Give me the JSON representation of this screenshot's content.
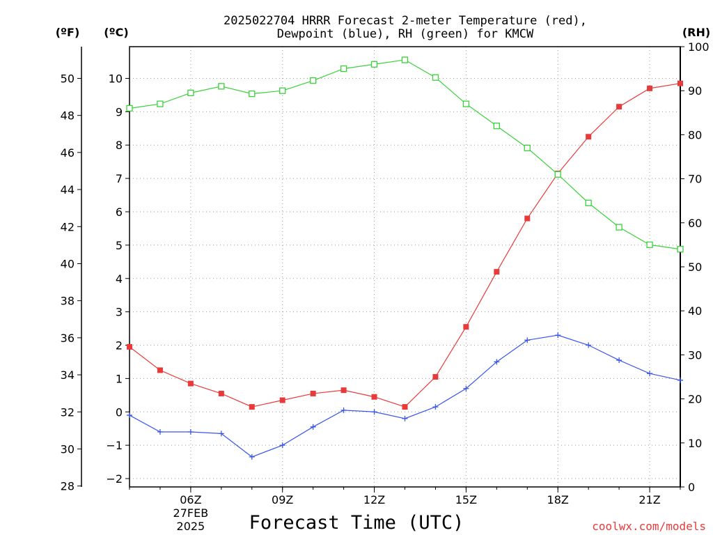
{
  "chart_data": {
    "type": "line",
    "title": "2025022704 HRRR Forecast 2-meter Temperature (red),",
    "subtitle": "Dewpoint (blue), RH (green) for KMCW",
    "xlabel": "Forecast Time (UTC)",
    "units": {
      "fahrenheit": "(ºF)",
      "celsius": "(ºC)",
      "rh": "(RH)"
    },
    "x_hours": [
      4,
      5,
      6,
      7,
      8,
      9,
      10,
      11,
      12,
      13,
      14,
      15,
      16,
      17,
      18,
      19,
      20,
      21,
      22
    ],
    "x_ticks": [
      {
        "hour": 6,
        "label": "06Z"
      },
      {
        "hour": 9,
        "label": "09Z"
      },
      {
        "hour": 12,
        "label": "12Z"
      },
      {
        "hour": 15,
        "label": "15Z"
      },
      {
        "hour": 18,
        "label": "18Z"
      },
      {
        "hour": 21,
        "label": "21Z"
      }
    ],
    "date_label": [
      "27FEB",
      "2025"
    ],
    "xlim": [
      4,
      22
    ],
    "ylim_celsius": [
      -2.25,
      10.95
    ],
    "ylim_rh": [
      0,
      100
    ],
    "yticks_celsius": [
      -2,
      -1,
      0,
      1,
      2,
      3,
      4,
      5,
      6,
      7,
      8,
      9,
      10
    ],
    "yticks_fahrenheit": [
      28,
      30,
      32,
      34,
      36,
      38,
      40,
      42,
      44,
      46,
      48,
      50
    ],
    "yticks_rh": [
      0,
      10,
      20,
      30,
      40,
      50,
      60,
      70,
      80,
      90,
      100
    ],
    "grid": true,
    "series": [
      {
        "name": "Temperature",
        "axis": "celsius",
        "color": "#e83a3a",
        "marker": "filled-square",
        "values": [
          1.95,
          1.25,
          0.85,
          0.55,
          0.15,
          0.35,
          0.55,
          0.65,
          0.45,
          0.15,
          1.05,
          2.55,
          4.2,
          5.8,
          7.15,
          8.25,
          9.15,
          9.7,
          9.85
        ]
      },
      {
        "name": "Dewpoint",
        "axis": "celsius",
        "color": "#3a56e8",
        "marker": "plus",
        "values": [
          -0.1,
          -0.6,
          -0.6,
          -0.65,
          -1.35,
          -1.0,
          -0.45,
          0.05,
          0.0,
          -0.2,
          0.15,
          0.7,
          1.5,
          2.15,
          2.3,
          2.0,
          1.55,
          1.15,
          0.95
        ]
      },
      {
        "name": "RH",
        "axis": "rh",
        "color": "#3ad23a",
        "marker": "open-square",
        "values": [
          86,
          87,
          89.5,
          91,
          89.3,
          90,
          92.3,
          95,
          96,
          97,
          93,
          87,
          82,
          77,
          71,
          64.5,
          59,
          55,
          54
        ]
      }
    ]
  },
  "credit": "coolwx.com/models"
}
